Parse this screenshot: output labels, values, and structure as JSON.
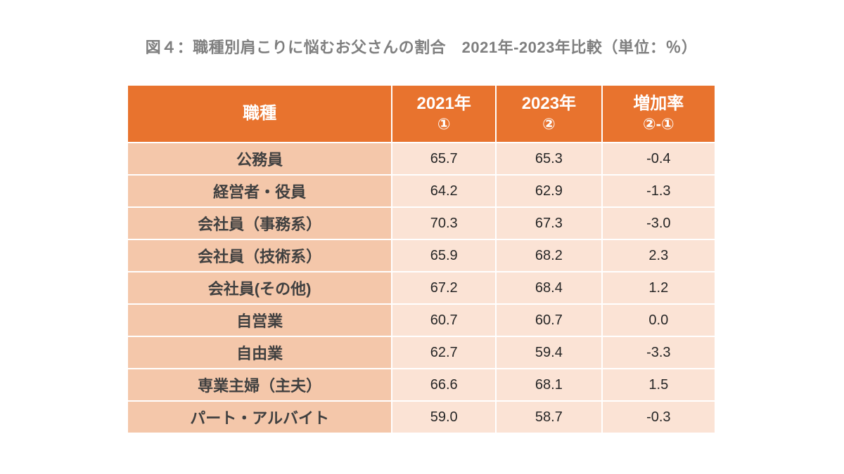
{
  "title": "図４：職種別肩こりに悩むお父さんの割合　2021年-2023年比較（単位：％）",
  "unit": "%",
  "colors": {
    "header_bg": "#e8732e",
    "occupation_column_bg": "#f4c7aa",
    "value_cell_bg": "#fbe3d5",
    "title_text": "#7f7f7f",
    "header_text": "#ffffff",
    "occupation_text": "#404040",
    "value_text": "#262626",
    "grid_gap": "#ffffff",
    "page_bg": "#ffffff"
  },
  "table": {
    "columns": [
      {
        "label": "職種",
        "sub": ""
      },
      {
        "label": "2021年",
        "sub": "①"
      },
      {
        "label": "2023年",
        "sub": "②"
      },
      {
        "label": "増加率",
        "sub": "②-①"
      }
    ],
    "rows": [
      {
        "occupation": "公務員",
        "y2021": "65.7",
        "y2023": "65.3",
        "change": "-0.4"
      },
      {
        "occupation": "経営者・役員",
        "y2021": "64.2",
        "y2023": "62.9",
        "change": "-1.3"
      },
      {
        "occupation": "会社員（事務系）",
        "y2021": "70.3",
        "y2023": "67.3",
        "change": "-3.0"
      },
      {
        "occupation": "会社員（技術系）",
        "y2021": "65.9",
        "y2023": "68.2",
        "change": "2.3"
      },
      {
        "occupation": "会社員(その他)",
        "y2021": "67.2",
        "y2023": "68.4",
        "change": "1.2"
      },
      {
        "occupation": "自営業",
        "y2021": "60.7",
        "y2023": "60.7",
        "change": "0.0"
      },
      {
        "occupation": "自由業",
        "y2021": "62.7",
        "y2023": "59.4",
        "change": "-3.3"
      },
      {
        "occupation": "専業主婦（主夫）",
        "y2021": "66.6",
        "y2023": "68.1",
        "change": "1.5"
      },
      {
        "occupation": "パート・アルバイト",
        "y2021": "59.0",
        "y2023": "58.7",
        "change": "-0.3"
      }
    ]
  },
  "chart_data": {
    "type": "table",
    "title": "図４：職種別肩こりに悩むお父さんの割合　2021年-2023年比較（単位：％）",
    "unit": "%",
    "columns": [
      "職種",
      "2021年 ①",
      "2023年 ②",
      "増加率 ②-①"
    ],
    "rows": [
      [
        "公務員",
        65.7,
        65.3,
        -0.4
      ],
      [
        "経営者・役員",
        64.2,
        62.9,
        -1.3
      ],
      [
        "会社員（事務系）",
        70.3,
        67.3,
        -3.0
      ],
      [
        "会社員（技術系）",
        65.9,
        68.2,
        2.3
      ],
      [
        "会社員(その他)",
        67.2,
        68.4,
        1.2
      ],
      [
        "自営業",
        60.7,
        60.7,
        0.0
      ],
      [
        "自由業",
        62.7,
        59.4,
        -3.3
      ],
      [
        "専業主婦（主夫）",
        66.6,
        68.1,
        1.5
      ],
      [
        "パート・アルバイト",
        59.0,
        58.7,
        -0.3
      ]
    ]
  }
}
